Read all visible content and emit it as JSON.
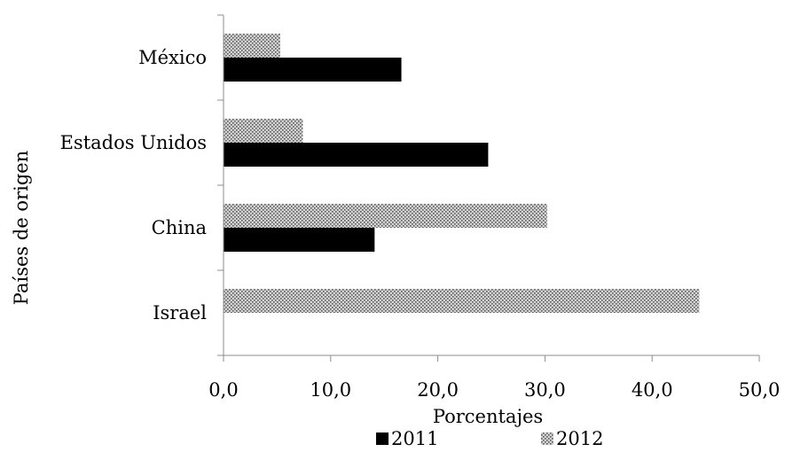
{
  "chart_data": {
    "type": "bar",
    "orientation": "horizontal",
    "categories": [
      "México",
      "Estados Unidos",
      "China",
      "Israel"
    ],
    "series": [
      {
        "name": "2011",
        "values": [
          16.6,
          24.7,
          14.1,
          0
        ],
        "color": "#000000",
        "pattern": "solid"
      },
      {
        "name": "2012",
        "values": [
          5.3,
          7.4,
          30.2,
          44.4
        ],
        "color": "#9a9a9a",
        "pattern": "dotted"
      }
    ],
    "xlim": [
      0,
      50
    ],
    "xticks": [
      "0,0",
      "10,0",
      "20,0",
      "30,0",
      "40,0",
      "50,0"
    ],
    "xlabel": "Porcentajes",
    "ylabel": "Países de origen",
    "grid": false,
    "legend_position": "bottom"
  }
}
